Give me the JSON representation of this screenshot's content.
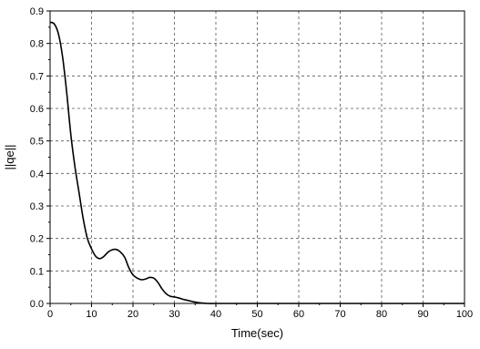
{
  "chart_data": {
    "type": "line",
    "title": "",
    "xlabel": "Time(sec)",
    "ylabel": "||qe||",
    "xlim": [
      0,
      100
    ],
    "ylim": [
      0,
      0.9
    ],
    "xticks": [
      0,
      10,
      20,
      30,
      40,
      50,
      60,
      70,
      80,
      90,
      100
    ],
    "yticks": [
      0.0,
      0.1,
      0.2,
      0.3,
      0.4,
      0.5,
      0.6,
      0.7,
      0.8,
      0.9
    ],
    "xtick_labels": [
      "0",
      "10",
      "20",
      "30",
      "40",
      "50",
      "60",
      "70",
      "80",
      "90",
      "100"
    ],
    "ytick_labels": [
      "0.0",
      "0.1",
      "0.2",
      "0.3",
      "0.4",
      "0.5",
      "0.6",
      "0.7",
      "0.8",
      "0.9"
    ],
    "grid": true,
    "series": [
      {
        "x": [
          0,
          1,
          2,
          3,
          4,
          5,
          6,
          7,
          8,
          9,
          10,
          11,
          12,
          13,
          14,
          15,
          16,
          17,
          18,
          19,
          20,
          21,
          22,
          23,
          24,
          25,
          26,
          27,
          28,
          29,
          30,
          31,
          32,
          33,
          34,
          35,
          36,
          37,
          38,
          40,
          45,
          50,
          60,
          70,
          80,
          90,
          100
        ],
        "y": [
          0.865,
          0.86,
          0.83,
          0.76,
          0.65,
          0.52,
          0.42,
          0.34,
          0.26,
          0.2,
          0.168,
          0.145,
          0.138,
          0.145,
          0.158,
          0.165,
          0.166,
          0.158,
          0.142,
          0.11,
          0.088,
          0.078,
          0.073,
          0.075,
          0.08,
          0.078,
          0.065,
          0.045,
          0.03,
          0.022,
          0.02,
          0.017,
          0.013,
          0.01,
          0.007,
          0.004,
          0.002,
          0.001,
          0.0,
          0.0,
          0.0,
          0.0,
          0.0,
          0.0,
          0.0,
          0.0,
          0.0
        ]
      }
    ]
  }
}
